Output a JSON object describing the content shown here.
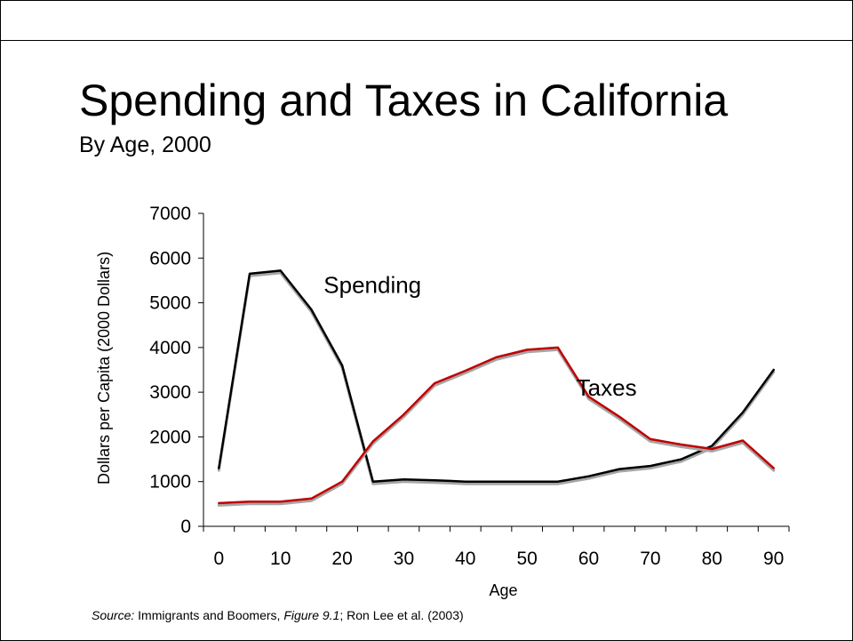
{
  "slide": {
    "title": "Spending and Taxes in California",
    "subtitle": "By Age, 2000",
    "source": {
      "prefix": "Source:",
      "text1": " Immigrants and Boomers, ",
      "figure": "Figure 9.1",
      "text2": "; Ron Lee et al. (2003)"
    }
  },
  "chart_data": {
    "type": "line",
    "title": "Spending and Taxes in California",
    "subtitle": "By Age, 2000",
    "xlabel": "Age",
    "ylabel": "Dollars per Capita (2000 Dollars)",
    "xlim": [
      -2.5,
      92.5
    ],
    "ylim": [
      0,
      7000
    ],
    "xticks": [
      0,
      10,
      20,
      30,
      40,
      50,
      60,
      70,
      80,
      90
    ],
    "yticks": [
      0,
      1000,
      2000,
      3000,
      4000,
      5000,
      6000,
      7000
    ],
    "grid": false,
    "series": [
      {
        "name": "Spending",
        "color": "#000000",
        "x": [
          0,
          5,
          10,
          15,
          20,
          25,
          30,
          35,
          40,
          45,
          50,
          55,
          60,
          65,
          70,
          75,
          80,
          85,
          90
        ],
        "values": [
          1300,
          5650,
          5720,
          4850,
          3600,
          1000,
          1050,
          1030,
          1000,
          1000,
          1000,
          1000,
          1120,
          1280,
          1350,
          1500,
          1800,
          2550,
          3500
        ]
      },
      {
        "name": "Taxes",
        "color": "#c00000",
        "x": [
          0,
          5,
          10,
          15,
          20,
          25,
          30,
          35,
          40,
          45,
          50,
          55,
          60,
          65,
          70,
          75,
          80,
          85,
          90
        ],
        "values": [
          520,
          550,
          550,
          620,
          1000,
          1900,
          2500,
          3200,
          3480,
          3780,
          3950,
          4000,
          2900,
          2450,
          1950,
          1830,
          1730,
          1920,
          1300
        ]
      }
    ],
    "annotations": [
      {
        "text": "Spending",
        "x": 17,
        "y": 5400
      },
      {
        "text": "Taxes",
        "x": 58,
        "y": 3100
      }
    ]
  }
}
